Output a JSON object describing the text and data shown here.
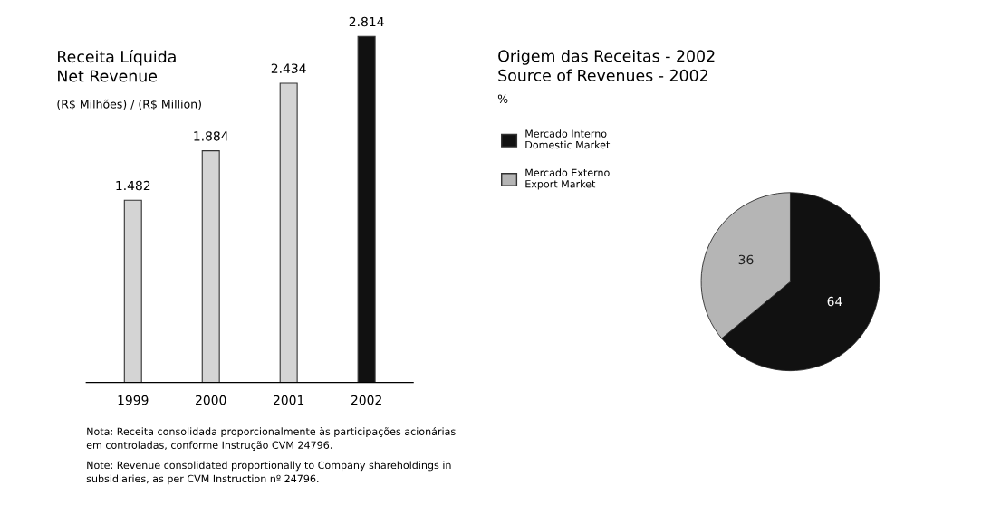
{
  "chart_data": [
    {
      "type": "bar",
      "title": "Receita Líquida\nNet Revenue",
      "subtitle": "(R$ Milhões) / (R$ Million)",
      "categories": [
        "1999",
        "2000",
        "2001",
        "2002"
      ],
      "values": [
        1482,
        1884,
        2434,
        2814
      ],
      "colors": [
        "#d4d4d4",
        "#d4d4d4",
        "#d4d4d4",
        "#111111"
      ],
      "value_labels": [
        "1.482",
        "1.884",
        "2.434",
        "2.814"
      ],
      "annotations": [
        "Nota: Receita consolidada proporcionalmente às participações acionárias\nem controladas, conforme Instrução CVM 24796.",
        "Note: Revenue consolidated proportionally to Company shareholdings in\nsubsidiaries, as per CVM Instruction nº 24796."
      ],
      "legend": false
    },
    {
      "type": "pie",
      "title": "Origem das Receitas - 2002\nSource of Revenues - 2002",
      "subtitle": "%",
      "categories": [
        "Mercado Interno\nDomestic Market",
        "Mercado Externo\nExport Market"
      ],
      "values": [
        64,
        36
      ],
      "colors": [
        "#111111",
        "#b5b5b5"
      ],
      "data_labels": true,
      "legend": "left"
    }
  ]
}
